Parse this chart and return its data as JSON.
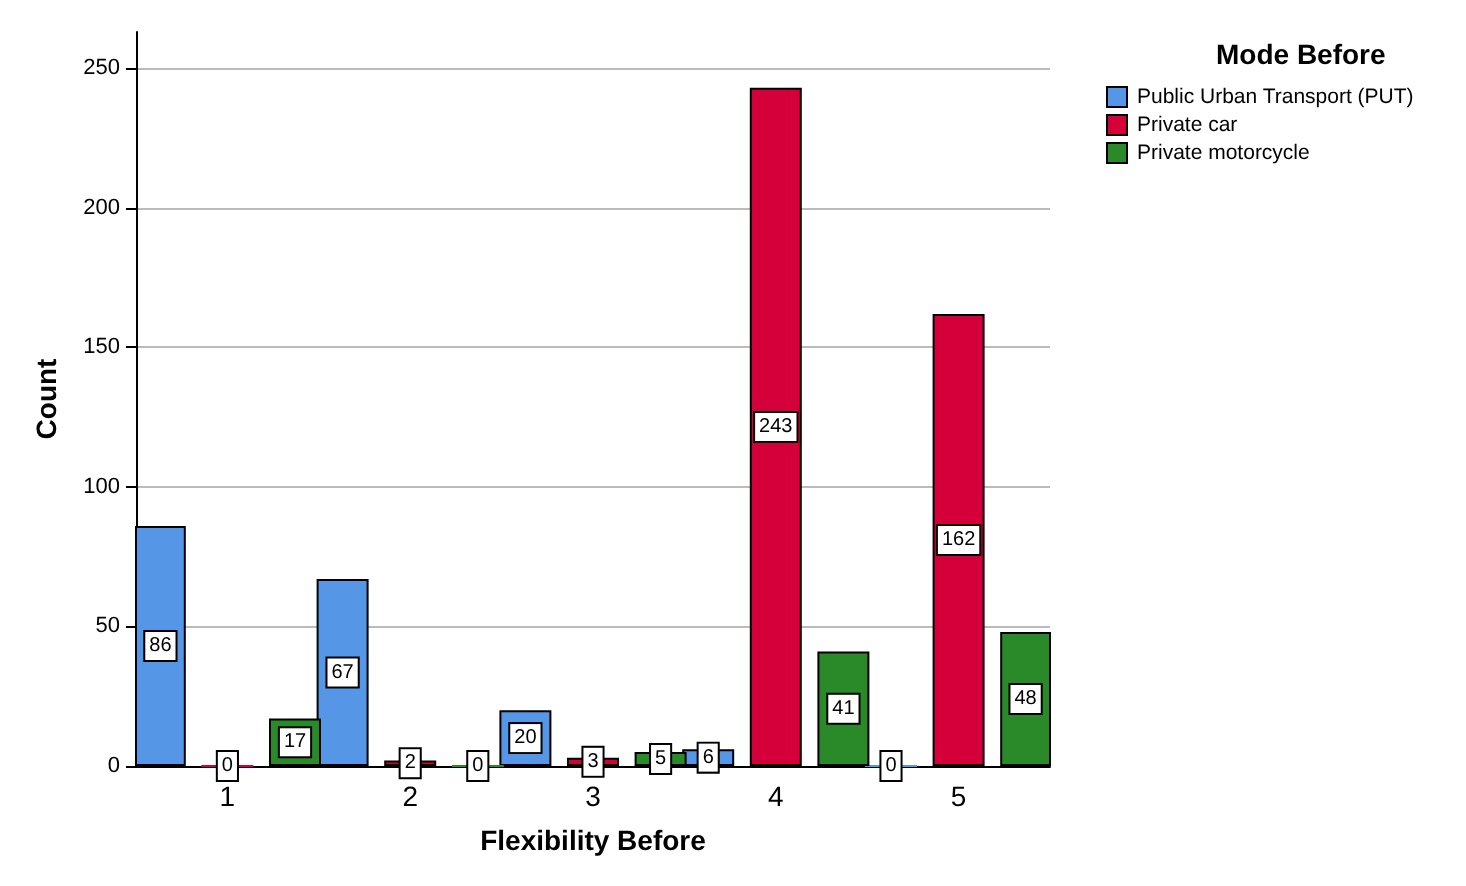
{
  "chart_data": {
    "type": "bar",
    "xlabel": "Flexibility Before",
    "ylabel": "Count",
    "legend_title": "Mode Before",
    "categories": [
      "1",
      "2",
      "3",
      "4",
      "5"
    ],
    "series": [
      {
        "name": "Public Urban Transport (PUT)",
        "color": "#5596e6",
        "values": [
          86,
          67,
          20,
          6,
          0
        ]
      },
      {
        "name": "Private car",
        "color": "#d5003a",
        "values": [
          0,
          2,
          3,
          243,
          162
        ]
      },
      {
        "name": "Private motorcycle",
        "color": "#2a8a2a",
        "values": [
          17,
          0,
          5,
          41,
          48
        ]
      }
    ],
    "ylim": [
      0,
      263
    ],
    "yticks": [
      0,
      50,
      100,
      150,
      200,
      250
    ],
    "grid": "y",
    "legend": "top right",
    "data_labels": true
  }
}
